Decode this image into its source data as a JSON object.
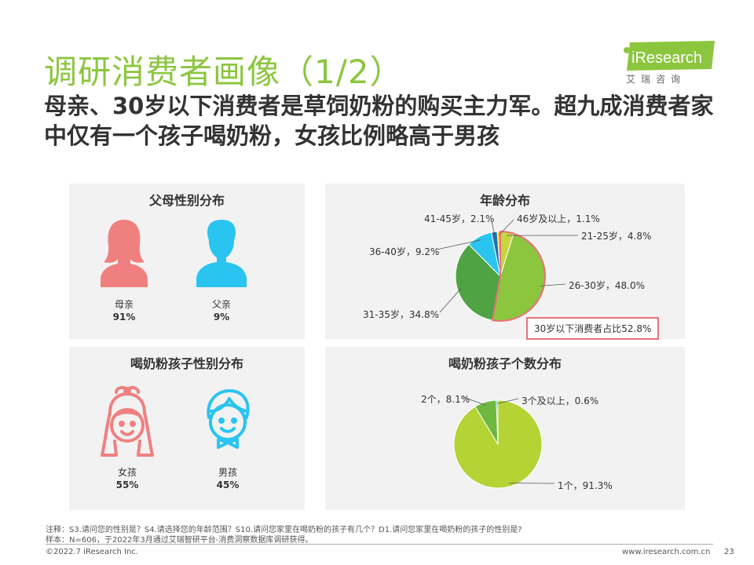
{
  "page": {
    "title": "调研消费者画像（1/2）",
    "subtitle": "母亲、30岁以下消费者是草饲奶粉的购买主力军。超九成消费者家中仅有一个孩子喝奶粉，女孩比例略高于男孩",
    "logo_brand": "iResearch",
    "logo_cn": "艾瑞咨询",
    "notes_1": "注释：S3.请问您的性别是？S4.请选择您的年龄范围？S10.请问您家里在喝奶粉的孩子有几个？D1.请问您家里在喝奶粉的孩子的性别是?",
    "notes_2": "样本：N=606，于2022年3月通过艾瑞智研平台-消费洞察数据库调研获得。",
    "copyright": "©2022.7 iResearch Inc.",
    "website": "www.iresearch.com.cn",
    "page_number": "23"
  },
  "colors": {
    "accent": "#8cc63f",
    "female": "#f08080",
    "male": "#29c4f0",
    "highlight": "#e8727a"
  },
  "parent_panel": {
    "title": "父母性别分布",
    "female_icon": "woman-silhouette-icon",
    "male_icon": "man-silhouette-icon",
    "female_label": "母亲",
    "female_pct": "91%",
    "male_label": "父亲",
    "male_pct": "9%"
  },
  "child_panel": {
    "title": "喝奶粉孩子性别分布",
    "girl_icon": "girl-face-icon",
    "boy_icon": "boy-face-icon",
    "girl_label": "女孩",
    "girl_pct": "55%",
    "boy_label": "男孩",
    "boy_pct": "45%"
  },
  "chart_data": [
    {
      "type": "pie",
      "title": "年龄分布",
      "slices": [
        {
          "name": "21-25岁",
          "value": 4.8,
          "color": "#c6d63f",
          "label": "21-25岁，4.8%"
        },
        {
          "name": "26-30岁",
          "value": 48.0,
          "color": "#8cc63f",
          "label": "26-30岁，48.0%"
        },
        {
          "name": "31-35岁",
          "value": 34.8,
          "color": "#4fa342",
          "label": "31-35岁，34.8%"
        },
        {
          "name": "36-40岁",
          "value": 9.2,
          "color": "#29c4f0",
          "label": "36-40岁，9.2%"
        },
        {
          "name": "41-45岁",
          "value": 2.1,
          "color": "#1f6fb2",
          "label": "41-45岁，2.1%"
        },
        {
          "name": "46岁及以上",
          "value": 1.1,
          "color": "#f5c518",
          "label": "46岁及以上，1.1%"
        }
      ],
      "annotation": "30岁以下消费者占比52.8%"
    },
    {
      "type": "pie",
      "title": "喝奶粉孩子个数分布",
      "slices": [
        {
          "name": "1个",
          "value": 91.3,
          "color": "#b5d334",
          "label": "1个，91.3%"
        },
        {
          "name": "2个",
          "value": 8.1,
          "color": "#6fb83f",
          "label": "2个，8.1%"
        },
        {
          "name": "3个及以上",
          "value": 0.6,
          "color": "#29c4f0",
          "label": "3个及以上，0.6%"
        }
      ]
    }
  ]
}
